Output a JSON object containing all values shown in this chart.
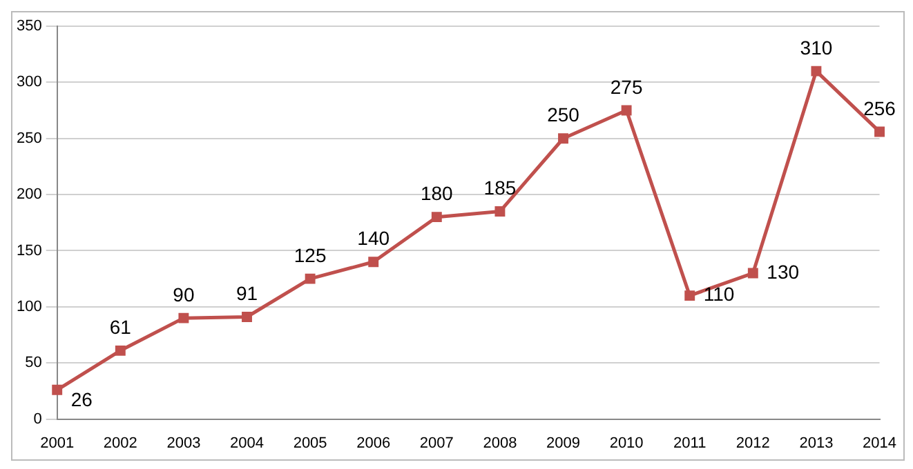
{
  "chart_data": {
    "type": "line",
    "categories": [
      "2001",
      "2002",
      "2003",
      "2004",
      "2005",
      "2006",
      "2007",
      "2008",
      "2009",
      "2010",
      "2011",
      "2012",
      "2013",
      "2014"
    ],
    "series": [
      {
        "color": "#c0504d",
        "values": [
          26,
          61,
          90,
          91,
          125,
          140,
          180,
          185,
          250,
          275,
          110,
          130,
          310,
          256
        ]
      }
    ],
    "ylim": [
      0,
      350
    ],
    "yticks": [
      0,
      50,
      100,
      150,
      200,
      250,
      300,
      350
    ],
    "grid": "y",
    "marker": "square",
    "line_style": "solid",
    "legend": false,
    "data_labels": true
  }
}
